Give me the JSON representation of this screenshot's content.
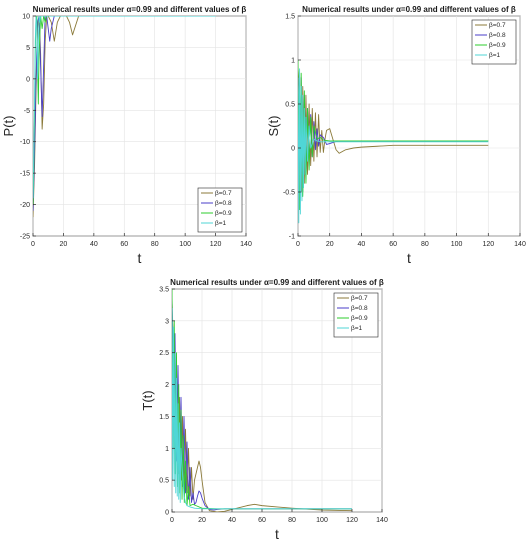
{
  "chart_data": [
    {
      "type": "line",
      "title": "Numerical results under α=0.99 and different values of β",
      "xlabel": "t",
      "ylabel": "P(t)",
      "xlim": [
        0,
        140
      ],
      "ylim": [
        -25,
        10
      ],
      "xticks": [
        0,
        20,
        40,
        60,
        80,
        100,
        120,
        140
      ],
      "yticks": [
        -25,
        -20,
        -15,
        -10,
        -5,
        0,
        5,
        10
      ],
      "grid": true,
      "legend": "bottom-right",
      "series": [
        {
          "name": "β=0.7",
          "color": "#8b7a3a",
          "x": [
            0,
            1,
            2,
            3,
            4,
            5,
            6,
            7,
            8,
            9,
            10,
            12,
            14,
            16,
            18,
            20,
            22,
            24,
            26,
            28,
            30,
            35,
            40,
            50,
            60,
            80,
            100,
            120
          ],
          "y": [
            -22,
            -14,
            -2,
            8,
            10,
            4,
            -8,
            -4,
            6,
            10,
            10,
            9,
            6,
            9,
            10,
            10,
            10,
            9,
            7,
            8.5,
            10,
            10,
            10,
            10,
            10,
            10,
            10,
            10
          ]
        },
        {
          "name": "β=0.8",
          "color": "#4a3ec8",
          "x": [
            0,
            1,
            2,
            3,
            4,
            5,
            6,
            7,
            8,
            9,
            10,
            11,
            12,
            14,
            16,
            18,
            20,
            25,
            30,
            40,
            60,
            80,
            100,
            120
          ],
          "y": [
            -21,
            -12,
            0,
            9,
            10,
            2,
            -6,
            2,
            10,
            10,
            8,
            6,
            8,
            10,
            10,
            10,
            10,
            10,
            10,
            10,
            10,
            10,
            10,
            10
          ]
        },
        {
          "name": "β=0.9",
          "color": "#2ecc2e",
          "x": [
            0,
            0.5,
            1,
            1.5,
            2,
            2.5,
            3,
            3.5,
            4,
            5,
            6,
            7,
            8,
            9,
            10,
            12,
            14,
            16,
            20,
            30,
            40,
            60,
            80,
            100,
            120
          ],
          "y": [
            -20,
            -14,
            -6,
            4,
            10,
            10,
            2,
            -4,
            4,
            10,
            8,
            10,
            9,
            10,
            10,
            10,
            10,
            10,
            10,
            10,
            10,
            10,
            10,
            10,
            10
          ]
        },
        {
          "name": "β=1",
          "color": "#4fd6d6",
          "x": [
            0,
            0.5,
            1,
            1.5,
            2,
            2.5,
            3,
            3.5,
            4,
            4.5,
            5,
            6,
            7,
            8,
            10,
            12,
            14,
            20,
            30,
            40,
            60,
            80,
            100,
            120
          ],
          "y": [
            -19,
            -12,
            -4,
            6,
            10,
            8,
            0,
            6,
            10,
            9,
            10,
            10,
            10,
            10,
            10,
            10,
            10,
            10,
            10,
            10,
            10,
            10,
            10,
            10
          ]
        }
      ]
    },
    {
      "type": "line",
      "title": "Numerical results under α=0.99 and different values of β",
      "xlabel": "t",
      "ylabel": "S(t)",
      "xlim": [
        0,
        140
      ],
      "ylim": [
        -1,
        1.5
      ],
      "xticks": [
        0,
        20,
        40,
        60,
        80,
        100,
        120,
        140
      ],
      "yticks": [
        -1,
        -0.5,
        0,
        0.5,
        1,
        1.5
      ],
      "grid": true,
      "legend": "top-right",
      "series": [
        {
          "name": "β=0.7",
          "color": "#8b7a3a",
          "x": [
            0,
            1,
            2,
            3,
            4,
            5,
            6,
            7,
            8,
            9,
            10,
            11,
            12,
            13,
            14,
            15,
            16,
            17,
            18,
            20,
            22,
            24,
            26,
            28,
            30,
            35,
            40,
            50,
            60,
            80,
            100,
            120
          ],
          "y": [
            0.9,
            0.6,
            -0.5,
            0.7,
            -0.4,
            0.6,
            -0.3,
            0.5,
            -0.2,
            0.45,
            -0.15,
            0.4,
            -0.1,
            0.38,
            -0.05,
            0.2,
            -0.05,
            0.1,
            0.2,
            0.22,
            0.1,
            -0.02,
            -0.06,
            -0.04,
            -0.02,
            0.0,
            0.01,
            0.02,
            0.03,
            0.03,
            0.03,
            0.03
          ]
        },
        {
          "name": "β=0.8",
          "color": "#4a3ec8",
          "x": [
            0,
            1,
            2,
            3,
            4,
            5,
            6,
            7,
            8,
            9,
            10,
            11,
            12,
            13,
            14,
            16,
            18,
            20,
            25,
            30,
            40,
            60,
            80,
            100,
            120
          ],
          "y": [
            0.95,
            -0.6,
            0.8,
            -0.5,
            0.6,
            -0.35,
            0.45,
            -0.2,
            0.38,
            -0.1,
            0.3,
            -0.02,
            0.22,
            0.02,
            0.15,
            0.12,
            0.04,
            0.05,
            0.08,
            0.08,
            0.08,
            0.08,
            0.08,
            0.08,
            0.08
          ]
        },
        {
          "name": "β=0.9",
          "color": "#2ecc2e",
          "x": [
            0,
            1,
            2,
            3,
            4,
            5,
            6,
            7,
            8,
            9,
            10,
            12,
            14,
            16,
            20,
            30,
            40,
            60,
            80,
            100,
            120
          ],
          "y": [
            1.0,
            -0.7,
            0.85,
            -0.55,
            0.65,
            -0.4,
            0.45,
            -0.25,
            0.35,
            -0.1,
            0.25,
            0.1,
            0.12,
            0.09,
            0.08,
            0.08,
            0.08,
            0.08,
            0.08,
            0.08,
            0.08
          ]
        },
        {
          "name": "β=1",
          "color": "#4fd6d6",
          "x": [
            0,
            0.5,
            1,
            1.5,
            2,
            2.5,
            3,
            3.5,
            4,
            4.5,
            5,
            6,
            7,
            8,
            10,
            12,
            14,
            20,
            30,
            40,
            60,
            80,
            100,
            120
          ],
          "y": [
            0.8,
            -0.85,
            0.9,
            -0.75,
            0.7,
            -0.6,
            0.6,
            -0.45,
            0.45,
            -0.3,
            0.35,
            -0.15,
            0.25,
            0.0,
            0.1,
            0.08,
            0.07,
            0.07,
            0.07,
            0.07,
            0.07,
            0.07,
            0.07,
            0.07
          ]
        }
      ]
    },
    {
      "type": "line",
      "title": "Numerical results under α=0.99 and different values of β",
      "xlabel": "t",
      "ylabel": "T(t)",
      "xlim": [
        0,
        140
      ],
      "ylim": [
        0,
        3.5
      ],
      "xticks": [
        0,
        20,
        40,
        60,
        80,
        100,
        120,
        140
      ],
      "yticks": [
        0,
        0.5,
        1,
        1.5,
        2,
        2.5,
        3,
        3.5
      ],
      "grid": true,
      "legend": "top-right",
      "series": [
        {
          "name": "β=0.7",
          "color": "#8b7a3a",
          "x": [
            0,
            1,
            2,
            3,
            4,
            5,
            6,
            7,
            8,
            9,
            10,
            11,
            12,
            13,
            14,
            15,
            16,
            17,
            18,
            19,
            20,
            22,
            25,
            30,
            35,
            40,
            50,
            55,
            60,
            70,
            80,
            100,
            120
          ],
          "y": [
            3.3,
            2.6,
            1.0,
            2.2,
            0.6,
            1.8,
            0.5,
            1.5,
            0.3,
            1.3,
            0.3,
            1.0,
            0.25,
            0.7,
            0.2,
            0.5,
            0.6,
            0.7,
            0.8,
            0.7,
            0.5,
            0.15,
            0.02,
            0.0,
            0.01,
            0.04,
            0.1,
            0.12,
            0.1,
            0.08,
            0.06,
            0.03,
            0.02
          ]
        },
        {
          "name": "β=0.8",
          "color": "#4a3ec8",
          "x": [
            0,
            1,
            2,
            3,
            4,
            5,
            6,
            7,
            8,
            9,
            10,
            11,
            12,
            13,
            14,
            15,
            16,
            17,
            18,
            19,
            20,
            22,
            25,
            28,
            30,
            35,
            40,
            60,
            80,
            100,
            120
          ],
          "y": [
            3.4,
            1.6,
            2.8,
            0.8,
            2.3,
            0.6,
            1.8,
            0.4,
            1.5,
            0.3,
            1.1,
            0.2,
            0.7,
            0.15,
            0.3,
            0.12,
            0.15,
            0.25,
            0.33,
            0.3,
            0.22,
            0.1,
            0.04,
            0.03,
            0.04,
            0.05,
            0.05,
            0.05,
            0.05,
            0.05,
            0.05
          ]
        },
        {
          "name": "β=0.9",
          "color": "#2ecc2e",
          "x": [
            0,
            0.7,
            1.5,
            2.2,
            3,
            3.7,
            4.5,
            5.2,
            6,
            6.7,
            7.5,
            8.2,
            9,
            10,
            11,
            12,
            14,
            16,
            20,
            30,
            40,
            60,
            80,
            100,
            120
          ],
          "y": [
            3.5,
            1.0,
            3.0,
            0.6,
            2.5,
            0.4,
            2.0,
            0.3,
            1.6,
            0.2,
            1.2,
            0.15,
            0.8,
            0.1,
            0.4,
            0.1,
            0.12,
            0.1,
            0.06,
            0.05,
            0.05,
            0.05,
            0.05,
            0.05,
            0.05
          ]
        },
        {
          "name": "β=1",
          "color": "#4fd6d6",
          "x": [
            0,
            0.5,
            1,
            1.5,
            2,
            2.5,
            3,
            3.5,
            4,
            4.5,
            5,
            5.5,
            6,
            7,
            8,
            9,
            10,
            12,
            15,
            20,
            30,
            40,
            60,
            80,
            100,
            120
          ],
          "y": [
            3.2,
            0.5,
            2.9,
            0.4,
            2.5,
            0.3,
            2.1,
            0.25,
            1.7,
            0.2,
            1.4,
            0.15,
            1.0,
            0.6,
            0.25,
            0.15,
            0.1,
            0.08,
            0.06,
            0.05,
            0.05,
            0.05,
            0.05,
            0.05,
            0.05,
            0.05
          ]
        }
      ]
    }
  ]
}
